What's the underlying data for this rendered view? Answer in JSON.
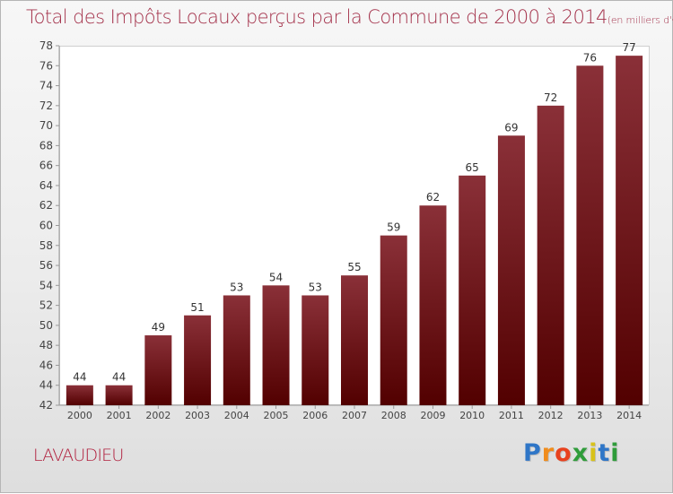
{
  "title": "Total des Impôts Locaux perçus par la Commune de 2000 à 2014",
  "title_unit": "(en milliers d'€)",
  "commune": "LAVAUDIEU",
  "logo": {
    "letters": [
      "P",
      "r",
      "o",
      "x",
      "i",
      "t",
      "i"
    ],
    "colors": [
      "#2f76c7",
      "#f08c1c",
      "#e8421e",
      "#2f9c3a",
      "#d8c21a",
      "#2f76c7",
      "#2f9c3a"
    ]
  },
  "colors": {
    "bar_top": "#8a3038",
    "bar_bottom": "#520000",
    "title": "#a4324b",
    "commune": "#b01e3c"
  },
  "chart_data": {
    "type": "bar",
    "title": "Total des Impôts Locaux perçus par la Commune de 2000 à 2014",
    "unit": "(en milliers d'€)",
    "categories": [
      "2000",
      "2001",
      "2002",
      "2003",
      "2004",
      "2005",
      "2006",
      "2007",
      "2008",
      "2009",
      "2010",
      "2011",
      "2012",
      "2013",
      "2014"
    ],
    "values": [
      44,
      44,
      49,
      51,
      53,
      54,
      53,
      55,
      59,
      62,
      65,
      69,
      72,
      76,
      77
    ],
    "ylim": [
      42,
      78
    ],
    "ytick_step": 2,
    "grid": false,
    "legend": "none"
  }
}
